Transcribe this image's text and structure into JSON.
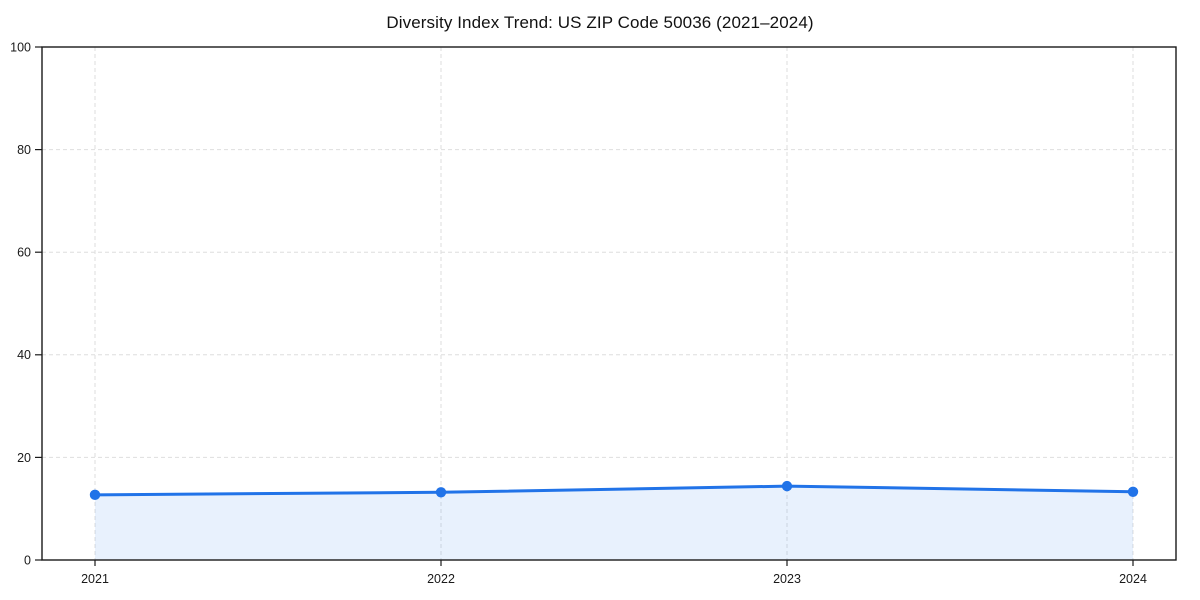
{
  "chart_data": {
    "type": "area",
    "title": "Diversity Index Trend: US ZIP Code 50036 (2021–2024)",
    "categories": [
      "2021",
      "2022",
      "2023",
      "2024"
    ],
    "values": [
      12.7,
      13.2,
      14.4,
      13.3
    ],
    "xlabel": "",
    "ylabel": "",
    "ylim": [
      0,
      100
    ],
    "yticks": [
      0,
      20,
      40,
      60,
      80,
      100
    ],
    "grid": true,
    "legend": "none",
    "colors": {
      "line": "#2173e8",
      "marker": "#2173e8",
      "fill": "rgba(33,115,232,0.10)",
      "gridline": "#dedede",
      "axis": "#1a1a1a",
      "text": "#1a1a1a",
      "background": "#ffffff"
    }
  }
}
